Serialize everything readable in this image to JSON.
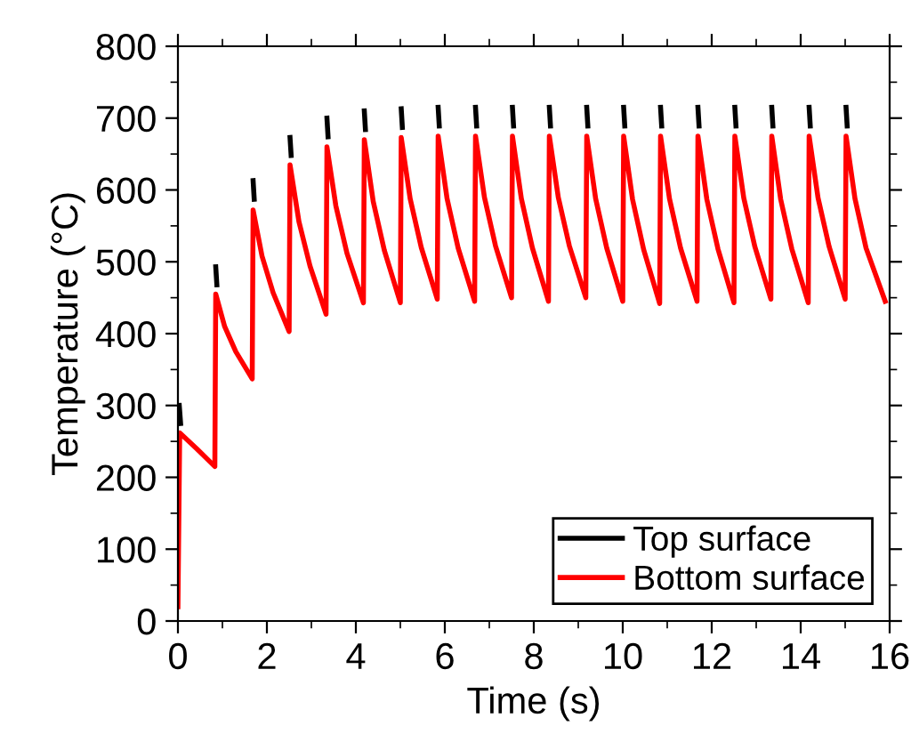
{
  "chart_data": {
    "type": "line",
    "xlabel": "Time (s)",
    "ylabel": "Temperature (°C)",
    "xlim": [
      0,
      16
    ],
    "xticks": [
      0,
      2,
      4,
      6,
      8,
      10,
      12,
      14,
      16
    ],
    "ylim": [
      0,
      800
    ],
    "yticks": [
      0,
      100,
      200,
      300,
      400,
      500,
      600,
      700,
      800
    ],
    "grid": false,
    "legend": "bottom right",
    "marker": "none",
    "line_style": "solid",
    "series": [
      {
        "name": "Top surface",
        "color": "#000000",
        "x": [
          0.03,
          0.06,
          0.4,
          0.85,
          0.875,
          1.2,
          1.69,
          1.715,
          2.1,
          2.52,
          2.545,
          2.9,
          3.35,
          3.375,
          3.8,
          4.19,
          4.215,
          4.6,
          5.02,
          5.045,
          5.4,
          5.85,
          5.875,
          6.3,
          6.69,
          6.715,
          7.1,
          7.52,
          7.545,
          7.9,
          8.35,
          8.375,
          8.8,
          9.19,
          9.215,
          9.6,
          10.02,
          10.045,
          10.4,
          10.85,
          10.875,
          11.3,
          11.69,
          11.715,
          12.1,
          12.52,
          12.545,
          12.9,
          13.35,
          13.375,
          13.8,
          14.19,
          14.215,
          14.6,
          15.02,
          15.045
        ],
        "values": [
          300,
          275,
          null,
          493,
          468,
          null,
          613,
          587,
          null,
          673,
          648,
          null,
          700,
          674,
          null,
          710,
          684,
          null,
          713,
          687,
          null,
          715,
          689,
          null,
          715,
          689,
          null,
          715,
          689,
          null,
          715,
          689,
          null,
          715,
          689,
          null,
          715,
          689,
          null,
          715,
          689,
          null,
          715,
          689,
          null,
          715,
          689,
          null,
          715,
          689,
          null,
          715,
          689,
          null,
          715,
          689
        ]
      },
      {
        "name": "Bottom surface",
        "color": "#ff0000",
        "x": [
          0,
          0.04,
          0.42,
          0.83,
          0.85,
          1.05,
          1.3,
          1.67,
          1.69,
          1.89,
          2.14,
          2.5,
          2.52,
          2.72,
          2.97,
          3.33,
          3.35,
          3.55,
          3.8,
          4.17,
          4.19,
          4.39,
          4.64,
          5.0,
          5.02,
          5.22,
          5.47,
          5.83,
          5.85,
          6.05,
          6.3,
          6.67,
          6.69,
          6.89,
          7.14,
          7.5,
          7.52,
          7.72,
          7.97,
          8.33,
          8.35,
          8.55,
          8.8,
          9.17,
          9.19,
          9.39,
          9.64,
          10.0,
          10.02,
          10.22,
          10.47,
          10.83,
          10.85,
          11.05,
          11.3,
          11.67,
          11.69,
          11.89,
          12.14,
          12.5,
          12.52,
          12.72,
          12.97,
          13.33,
          13.35,
          13.55,
          13.8,
          14.17,
          14.19,
          14.39,
          14.64,
          15.0,
          15.02,
          15.22,
          15.47,
          15.9
        ],
        "values": [
          20,
          262,
          240,
          215,
          455,
          410,
          375,
          337,
          572,
          508,
          457,
          403,
          635,
          556,
          494,
          427,
          660,
          578,
          512,
          443,
          670,
          584,
          516,
          443,
          673,
          588,
          520,
          448,
          675,
          588,
          519,
          445,
          675,
          590,
          522,
          450,
          675,
          588,
          519,
          445,
          675,
          590,
          522,
          450,
          675,
          588,
          519,
          445,
          675,
          587,
          517,
          442,
          675,
          588,
          519,
          445,
          675,
          587,
          518,
          443,
          675,
          589,
          521,
          448,
          675,
          587,
          518,
          443,
          675,
          589,
          521,
          448,
          675,
          588,
          519,
          445
        ]
      }
    ]
  }
}
